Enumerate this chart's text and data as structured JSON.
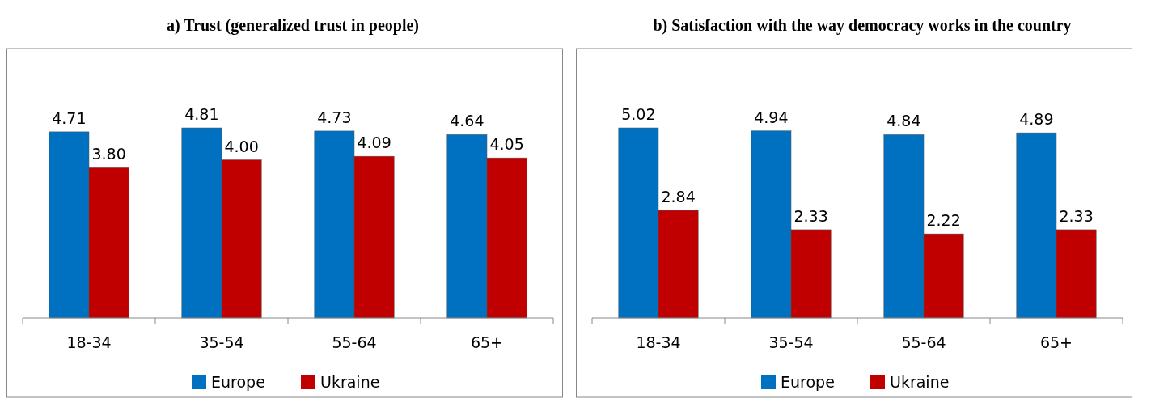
{
  "chart_data": [
    {
      "type": "bar",
      "title": "a) Trust (generalized trust in people)",
      "categories": [
        "18-34",
        "35-54",
        "55-64",
        "65+"
      ],
      "legend": "bottom",
      "series": [
        {
          "name": "Europe",
          "color": "#0070c0",
          "values": [
            4.71,
            4.81,
            4.73,
            4.64
          ],
          "value_labels": [
            "4.71",
            "4.81",
            "4.73",
            "4.64"
          ]
        },
        {
          "name": "Ukraine",
          "color": "#c00000",
          "values": [
            3.8,
            4.0,
            4.09,
            4.05
          ],
          "value_labels": [
            "3.80",
            "4.00",
            "4.09",
            "4.05"
          ]
        }
      ]
    },
    {
      "type": "bar",
      "title": "b) Satisfaction with the way democracy works in the country",
      "categories": [
        "18-34",
        "35-54",
        "55-64",
        "65+"
      ],
      "legend": "bottom",
      "series": [
        {
          "name": "Europe",
          "color": "#0070c0",
          "values": [
            5.02,
            4.94,
            4.84,
            4.89
          ],
          "value_labels": [
            "5.02",
            "4.94",
            "4.84",
            "4.89"
          ]
        },
        {
          "name": "Ukraine",
          "color": "#c00000",
          "values": [
            2.84,
            2.33,
            2.22,
            2.33
          ],
          "value_labels": [
            "2.84",
            "2.33",
            "2.22",
            "2.33"
          ]
        }
      ]
    }
  ]
}
